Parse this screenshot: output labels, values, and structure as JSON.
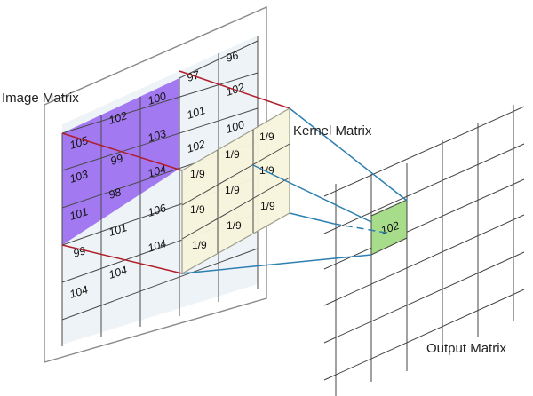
{
  "labels": {
    "image_matrix": "Image Matrix",
    "kernel_matrix": "Kernel Matrix",
    "output_matrix": "Output Matrix"
  },
  "image_matrix": {
    "rows": [
      [
        "",
        "",
        "",
        "97",
        "96",
        ""
      ],
      [
        "105",
        "102",
        "100",
        "101",
        "102",
        ""
      ],
      [
        "103",
        "99",
        "103",
        "102",
        "100",
        ""
      ],
      [
        "101",
        "98",
        "104",
        "",
        "",
        ""
      ],
      [
        "",
        "101",
        "106",
        "",
        "",
        ""
      ],
      [
        "99",
        "",
        "104",
        "",
        "",
        ""
      ],
      [
        "104",
        "104",
        "",
        "",
        "",
        ""
      ]
    ]
  },
  "kernel_matrix": {
    "values": [
      [
        "1/9",
        "1/9",
        "1/9"
      ],
      [
        "1/9",
        "1/9",
        "1/9"
      ],
      [
        "1/9",
        "1/9",
        "1/9"
      ]
    ]
  },
  "output_matrix": {
    "highlighted_value": "102"
  },
  "colors": {
    "image_highlight": "#9b6ff0",
    "image_cell": "#eef3f7",
    "kernel_fill": "#f7f5dc",
    "output_highlight": "#a7dc8a",
    "red_lines": "#b01e2a",
    "blue_lines": "#2d7fb0",
    "grid_lines": "#555555"
  }
}
